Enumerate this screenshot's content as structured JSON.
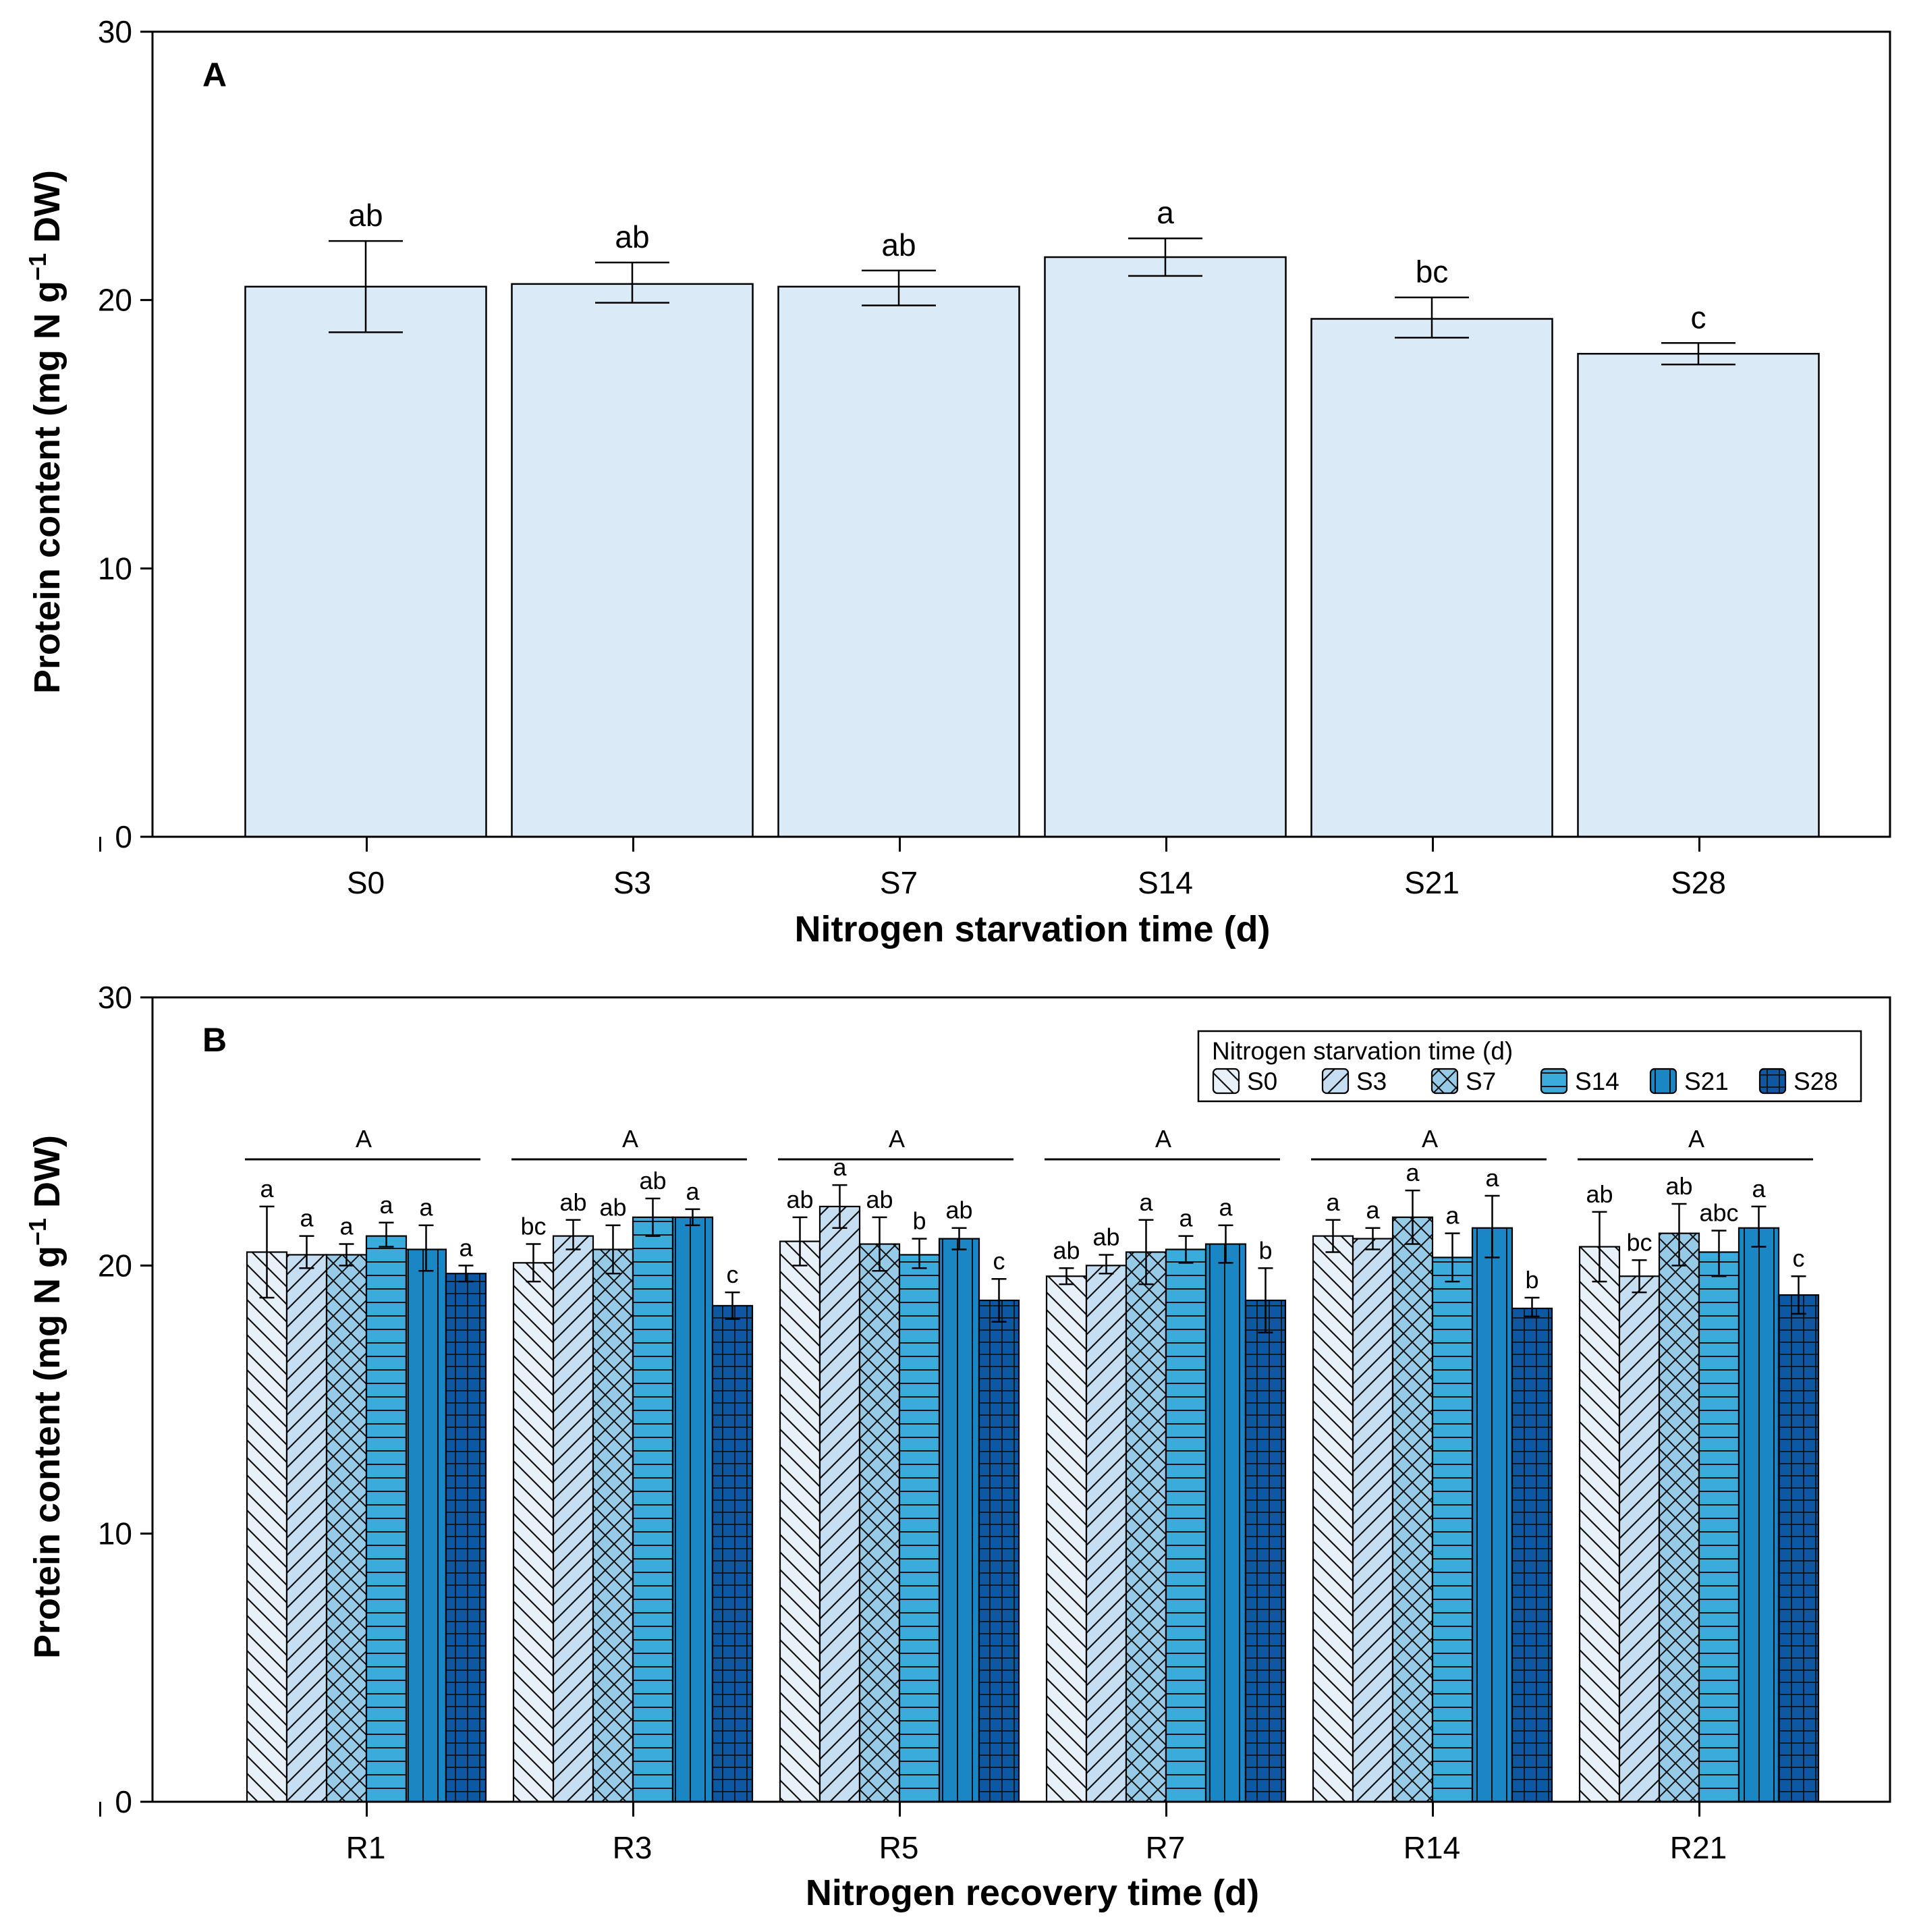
{
  "chart_data": [
    {
      "panel": "A",
      "type": "bar",
      "title": "",
      "panel_label": "A",
      "xlabel": "Nitrogen starvation time (d)",
      "ylabel": "Protein content (mg N g",
      "ylabel_sup": "−1",
      "ylabel_tail": " DW)",
      "ylim": [
        0,
        30
      ],
      "yticks": [
        "0",
        "10",
        "20",
        "30"
      ],
      "categories": [
        "S0",
        "S3",
        "S7",
        "S14",
        "S21",
        "S28"
      ],
      "values": [
        20.5,
        20.6,
        20.5,
        21.6,
        19.3,
        18.0
      ],
      "err_low": [
        18.8,
        19.9,
        19.8,
        20.9,
        18.6,
        17.6
      ],
      "err_high": [
        22.2,
        21.4,
        21.1,
        22.3,
        20.1,
        18.4
      ],
      "sig": [
        "ab",
        "ab",
        "ab",
        "a",
        "bc",
        "c"
      ],
      "color": "#daeaf7"
    },
    {
      "panel": "B",
      "type": "bar",
      "title": "",
      "panel_label": "B",
      "xlabel": "Nitrogen recovery time (d)",
      "ylabel": "Protein content (mg N g",
      "ylabel_sup": "−1",
      "ylabel_tail": " DW)",
      "ylim": [
        0,
        30
      ],
      "yticks": [
        "0",
        "10",
        "20",
        "30"
      ],
      "categories": [
        "R1",
        "R3",
        "R5",
        "R7",
        "R14",
        "R21"
      ],
      "group_sig": [
        "A",
        "A",
        "A",
        "A",
        "A",
        "A"
      ],
      "legend": {
        "title": "Nitrogen starvation time (d)",
        "position": "top-right"
      },
      "series": [
        {
          "name": "S0",
          "color": "#e8f1fa",
          "pattern": "back-diagonal",
          "values": [
            20.5,
            20.1,
            20.9,
            19.6,
            21.1,
            20.7
          ],
          "err_low": [
            18.8,
            19.4,
            20.0,
            19.3,
            20.5,
            19.4
          ],
          "err_high": [
            22.2,
            20.8,
            21.8,
            19.9,
            21.7,
            22.0
          ],
          "sig": [
            "a",
            "bc",
            "ab",
            "ab",
            "a",
            "ab"
          ]
        },
        {
          "name": "S3",
          "color": "#c6def2",
          "pattern": "diagonal",
          "values": [
            20.4,
            21.1,
            22.2,
            20.0,
            21.0,
            19.6
          ],
          "err_low": [
            19.9,
            20.6,
            21.4,
            19.7,
            20.6,
            19.0
          ],
          "err_high": [
            21.1,
            21.7,
            23.0,
            20.4,
            21.4,
            20.2
          ],
          "sig": [
            "a",
            "ab",
            "a",
            "ab",
            "a",
            "bc"
          ]
        },
        {
          "name": "S7",
          "color": "#96cae6",
          "pattern": "crosshatch",
          "values": [
            20.4,
            20.6,
            20.8,
            20.5,
            21.8,
            21.2
          ],
          "err_low": [
            20.0,
            19.7,
            19.8,
            19.3,
            20.8,
            20.0
          ],
          "err_high": [
            20.8,
            21.5,
            21.8,
            21.7,
            22.8,
            22.3
          ],
          "sig": [
            "a",
            "ab",
            "ab",
            "a",
            "a",
            "ab"
          ]
        },
        {
          "name": "S14",
          "color": "#3aabdb",
          "pattern": "horizontal",
          "values": [
            21.1,
            21.8,
            20.4,
            20.6,
            20.3,
            20.5
          ],
          "err_low": [
            20.7,
            21.1,
            19.9,
            20.1,
            19.4,
            19.6
          ],
          "err_high": [
            21.6,
            22.5,
            21.0,
            21.1,
            21.2,
            21.3
          ],
          "sig": [
            "a",
            "ab",
            "b",
            "a",
            "a",
            "abc"
          ]
        },
        {
          "name": "S21",
          "color": "#1a87c4",
          "pattern": "vertical",
          "values": [
            20.6,
            21.8,
            21.0,
            20.8,
            21.4,
            21.4
          ],
          "err_low": [
            19.8,
            21.5,
            20.6,
            20.1,
            20.3,
            20.7
          ],
          "err_high": [
            21.5,
            22.1,
            21.4,
            21.5,
            22.6,
            22.2
          ],
          "sig": [
            "a",
            "a",
            "ab",
            "a",
            "a",
            "a"
          ]
        },
        {
          "name": "S28",
          "color": "#0d57a3",
          "pattern": "grid",
          "values": [
            19.7,
            18.5,
            18.7,
            18.7,
            18.4,
            18.9
          ],
          "err_low": [
            19.4,
            18.0,
            17.9,
            17.5,
            18.1,
            18.2
          ],
          "err_high": [
            20.0,
            19.0,
            19.5,
            19.9,
            18.8,
            19.6
          ],
          "sig": [
            "a",
            "c",
            "c",
            "b",
            "b",
            "c"
          ]
        }
      ]
    }
  ]
}
